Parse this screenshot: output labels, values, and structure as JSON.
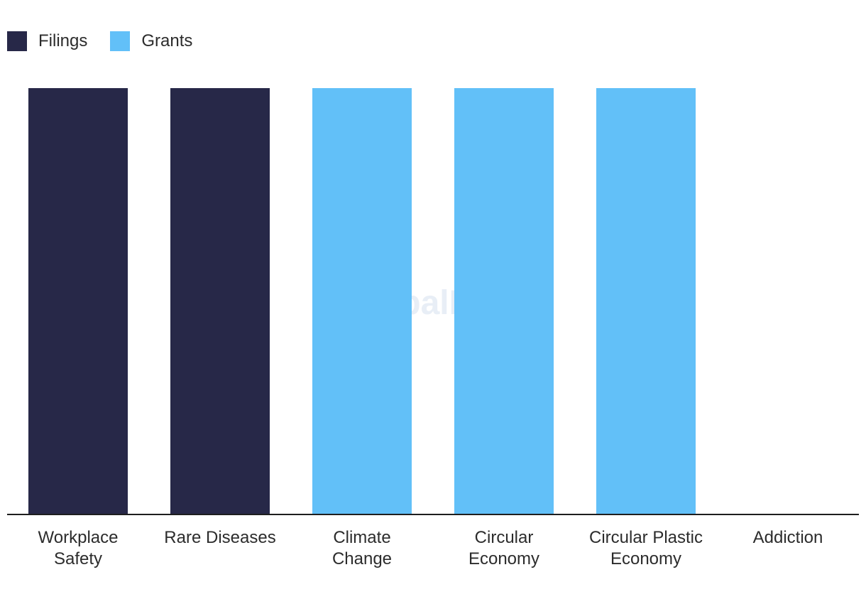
{
  "watermark": "GlobalData",
  "chart_data": {
    "type": "bar",
    "categories": [
      [
        "Workplace",
        "Safety"
      ],
      [
        "Rare Diseases"
      ],
      [
        "Climate",
        "Change"
      ],
      [
        "Circular",
        "Economy"
      ],
      [
        "Circular Plastic",
        "Economy"
      ],
      [
        "Addiction"
      ]
    ],
    "series": [
      {
        "name": "Filings",
        "color": "#272848",
        "values": [
          1,
          1,
          0,
          0,
          0,
          0
        ]
      },
      {
        "name": "Grants",
        "color": "#62c0f8",
        "values": [
          0,
          0,
          1,
          1,
          1,
          0
        ]
      }
    ],
    "ylim": [
      0,
      1
    ],
    "grid": false,
    "legend_position": "top-left"
  }
}
